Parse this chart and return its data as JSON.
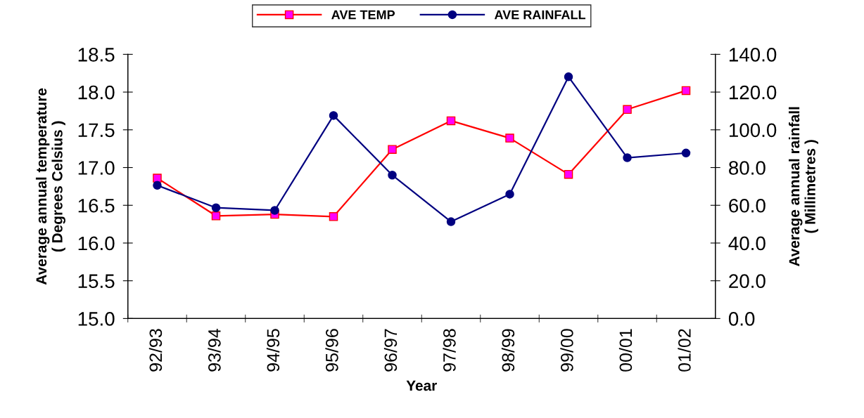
{
  "chart_data": {
    "type": "line",
    "xlabel": "Year",
    "ylabel": "Average annual temperature\n( Degrees Celsius )",
    "y2label": "Average annual rainfall\n( Millimetres )",
    "categories": [
      "92/93",
      "93/94",
      "94/95",
      "95/96",
      "96/97",
      "97/98",
      "98/99",
      "99/00",
      "00/01",
      "01/02"
    ],
    "series": [
      {
        "name": "AVE TEMP",
        "color": "#ff0000",
        "marker": "square",
        "values": [
          16.86,
          16.36,
          16.38,
          16.35,
          17.24,
          17.62,
          17.39,
          16.91,
          17.77,
          18.02
        ]
      },
      {
        "name": "AVE RAINFALL",
        "color": "#000080",
        "marker": "circle",
        "axis": "y2",
        "values": [
          70.6,
          58.7,
          57.3,
          107.6,
          76.0,
          51.3,
          65.9,
          128.1,
          85.2,
          87.7
        ]
      }
    ],
    "ylim": [
      15.0,
      18.5
    ],
    "yticks": [
      {
        "value": 15.0,
        "label": "15.0"
      },
      {
        "value": 15.5,
        "label": "15.5"
      },
      {
        "value": 16.0,
        "label": "16.0"
      },
      {
        "value": 16.5,
        "label": "16.5"
      },
      {
        "value": 17.0,
        "label": "17.0"
      },
      {
        "value": 17.5,
        "label": "17.5"
      },
      {
        "value": 18.0,
        "label": "18.0"
      },
      {
        "value": 18.5,
        "label": "18.5"
      }
    ],
    "y2lim": [
      0,
      140
    ],
    "y2ticks": [
      {
        "value": 0,
        "label": "0.0"
      },
      {
        "value": 20,
        "label": "20.0"
      },
      {
        "value": 40,
        "label": "40.0"
      },
      {
        "value": 60,
        "label": "60.0"
      },
      {
        "value": 80,
        "label": "80.0"
      },
      {
        "value": 100,
        "label": "100.0"
      },
      {
        "value": 120,
        "label": "120.0"
      },
      {
        "value": 140,
        "label": "140.0"
      }
    ],
    "grid": false,
    "legend": "top",
    "line_style": "solid"
  }
}
